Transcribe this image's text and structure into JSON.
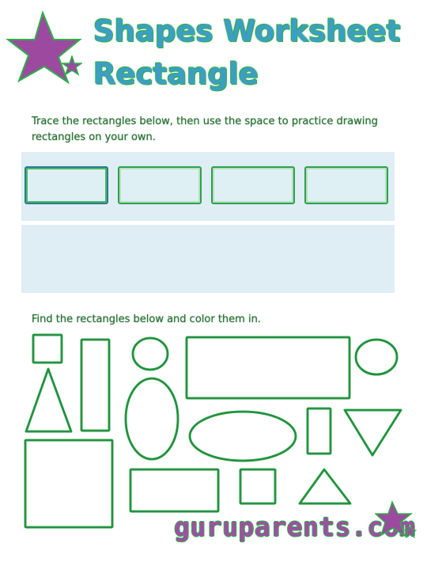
{
  "header": {
    "title_line1": "Shapes Worksheet",
    "title_line2": "Rectangle"
  },
  "section_trace": {
    "instructions_line1": "Trace the rectangles below, then use the space to practice drawing",
    "instructions_line2": "rectangles on your own."
  },
  "section_find": {
    "instructions": "Find the rectangles below and color them in."
  },
  "footer": {
    "brand": "guruparents.com"
  },
  "colors": {
    "title_fill": "#3d9ec4",
    "outline_green": "#2eae4a",
    "star_purple": "#9b4aa0",
    "panel_blue": "#deeef4"
  }
}
